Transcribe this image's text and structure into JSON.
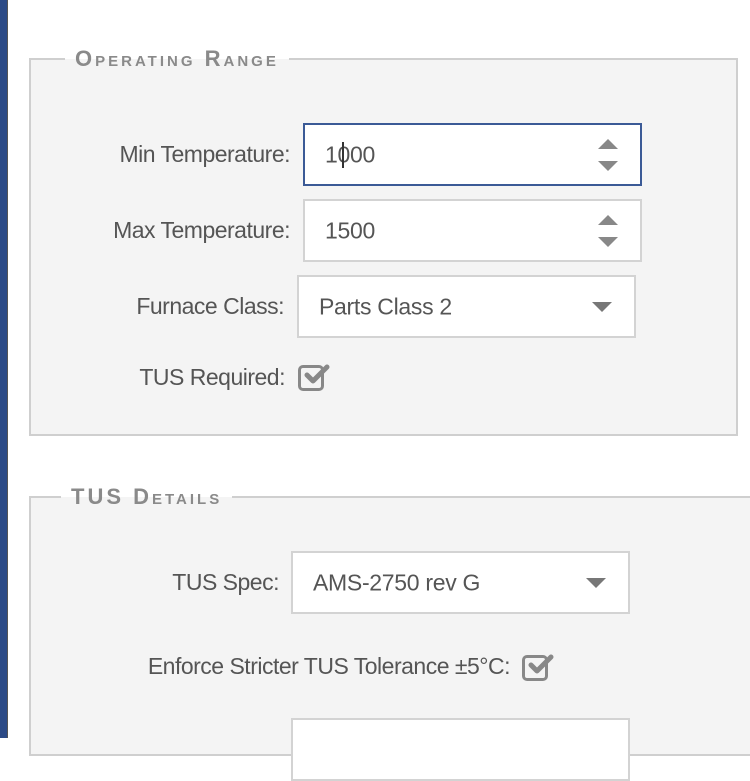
{
  "operating_range": {
    "legend": "Operating Range",
    "min_temperature": {
      "label": "Min Temperature:",
      "value": "1000"
    },
    "max_temperature": {
      "label": "Max Temperature:",
      "value": "1500"
    },
    "furnace_class": {
      "label": "Furnace Class:",
      "value": "Parts Class 2"
    },
    "tus_required": {
      "label": "TUS Required:",
      "checked": true
    }
  },
  "tus_details": {
    "legend": "TUS Details",
    "tus_spec": {
      "label": "TUS Spec:",
      "value": "AMS-2750 rev G"
    },
    "enforce_stricter": {
      "label": "Enforce Stricter TUS Tolerance ±5°C:",
      "checked": true
    }
  },
  "colors": {
    "focus_border": "#3b5a96",
    "checkbox": "#888888"
  }
}
